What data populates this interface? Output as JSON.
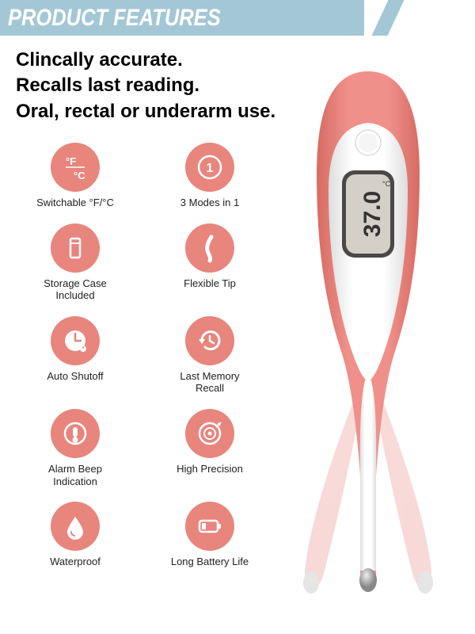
{
  "header": {
    "title": "PRODUCT FEATURES"
  },
  "headlines": [
    "Clincally accurate.",
    "Recalls last reading.",
    "Oral, rectal or underarm use."
  ],
  "accent_color": "#e8857d",
  "header_bg": "#a3c7d4",
  "thermometer": {
    "display_value": "37.0",
    "display_unit": "C",
    "body_color": "#e8857d"
  },
  "features": [
    {
      "icon": "fc",
      "label": "Switchable °F/°C"
    },
    {
      "icon": "modes",
      "label": "3 Modes in 1"
    },
    {
      "icon": "case",
      "label": "Storage Case Included"
    },
    {
      "icon": "flex",
      "label": "Flexible Tip"
    },
    {
      "icon": "shutoff",
      "label": "Auto Shutoff"
    },
    {
      "icon": "recall",
      "label": "Last Memory Recall"
    },
    {
      "icon": "alarm",
      "label": "Alarm Beep Indication"
    },
    {
      "icon": "precision",
      "label": "High Precision"
    },
    {
      "icon": "water",
      "label": "Waterproof"
    },
    {
      "icon": "battery",
      "label": "Long Battery Life"
    }
  ]
}
